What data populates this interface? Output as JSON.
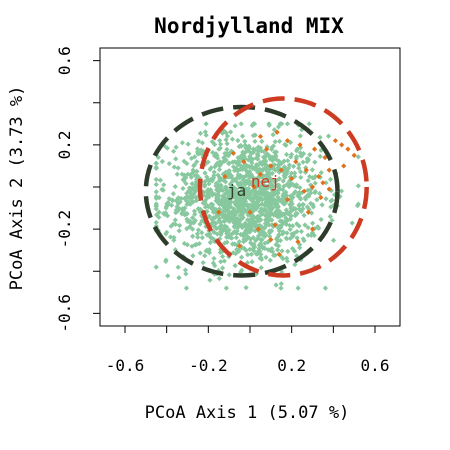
{
  "chart_data": {
    "type": "scatter",
    "title": "Nordjylland MIX",
    "xlabel": "PCoA Axis 1 (5.07 %)",
    "ylabel": "PCoA Axis 2 (3.73 %)",
    "xlim": [
      -0.72,
      0.72
    ],
    "ylim": [
      -0.66,
      0.66
    ],
    "xticks": [
      -0.6,
      -0.4,
      -0.2,
      0,
      0.2,
      0.4,
      0.6
    ],
    "xtick_labels": [
      "-0.6",
      "",
      "-0.2",
      "",
      "0.2",
      "",
      "0.6"
    ],
    "yticks": [
      -0.6,
      -0.4,
      -0.2,
      0,
      0.2,
      0.4,
      0.6
    ],
    "ytick_labels": [
      "-0.6",
      "",
      "-0.2",
      "",
      "0.2",
      "",
      "0.6"
    ],
    "grid": false,
    "series": [
      {
        "name": "ja",
        "color": "#88c89e",
        "ellipse_color": "#2e3d2b",
        "center": [
          -0.04,
          -0.02
        ],
        "ellipse_radii": [
          0.46,
          0.4
        ],
        "point_cloud_range_x": [
          -0.45,
          0.52
        ],
        "point_cloud_range_y": [
          -0.48,
          0.3
        ]
      },
      {
        "name": "nej",
        "color": "#e0711c",
        "ellipse_color": "#cc3b22",
        "center": [
          0.16,
          0.0
        ],
        "ellipse_radii": [
          0.4,
          0.42
        ],
        "points": [
          [
            0.05,
            0.24
          ],
          [
            0.13,
            0.26
          ],
          [
            0.18,
            0.22
          ],
          [
            0.24,
            0.2
          ],
          [
            0.31,
            0.18
          ],
          [
            0.36,
            0.14
          ],
          [
            0.38,
            0.08
          ],
          [
            0.44,
            0.2
          ],
          [
            0.47,
            0.18
          ],
          [
            0.5,
            0.15
          ],
          [
            0.33,
            0.05
          ],
          [
            0.35,
            0.02
          ],
          [
            0.38,
            -0.01
          ],
          [
            0.3,
            0.0
          ],
          [
            0.26,
            -0.02
          ],
          [
            0.2,
            0.04
          ],
          [
            0.15,
            0.08
          ],
          [
            0.1,
            0.1
          ],
          [
            0.05,
            0.06
          ],
          [
            0.02,
            0.0
          ],
          [
            -0.03,
            0.12
          ],
          [
            -0.08,
            0.16
          ],
          [
            -0.15,
            -0.12
          ],
          [
            0.0,
            -0.12
          ],
          [
            0.12,
            -0.18
          ],
          [
            0.1,
            -0.25
          ],
          [
            0.04,
            -0.2
          ],
          [
            0.18,
            -0.06
          ],
          [
            0.28,
            -0.12
          ],
          [
            0.3,
            -0.2
          ],
          [
            0.23,
            -0.26
          ],
          [
            0.14,
            -0.32
          ],
          [
            0.22,
            0.12
          ],
          [
            0.27,
            0.08
          ],
          [
            0.41,
            0.22
          ],
          [
            0.45,
            0.1
          ],
          [
            -0.05,
            -0.28
          ],
          [
            0.08,
            0.18
          ],
          [
            -0.12,
            0.05
          ],
          [
            0.34,
            -0.05
          ]
        ]
      }
    ]
  }
}
